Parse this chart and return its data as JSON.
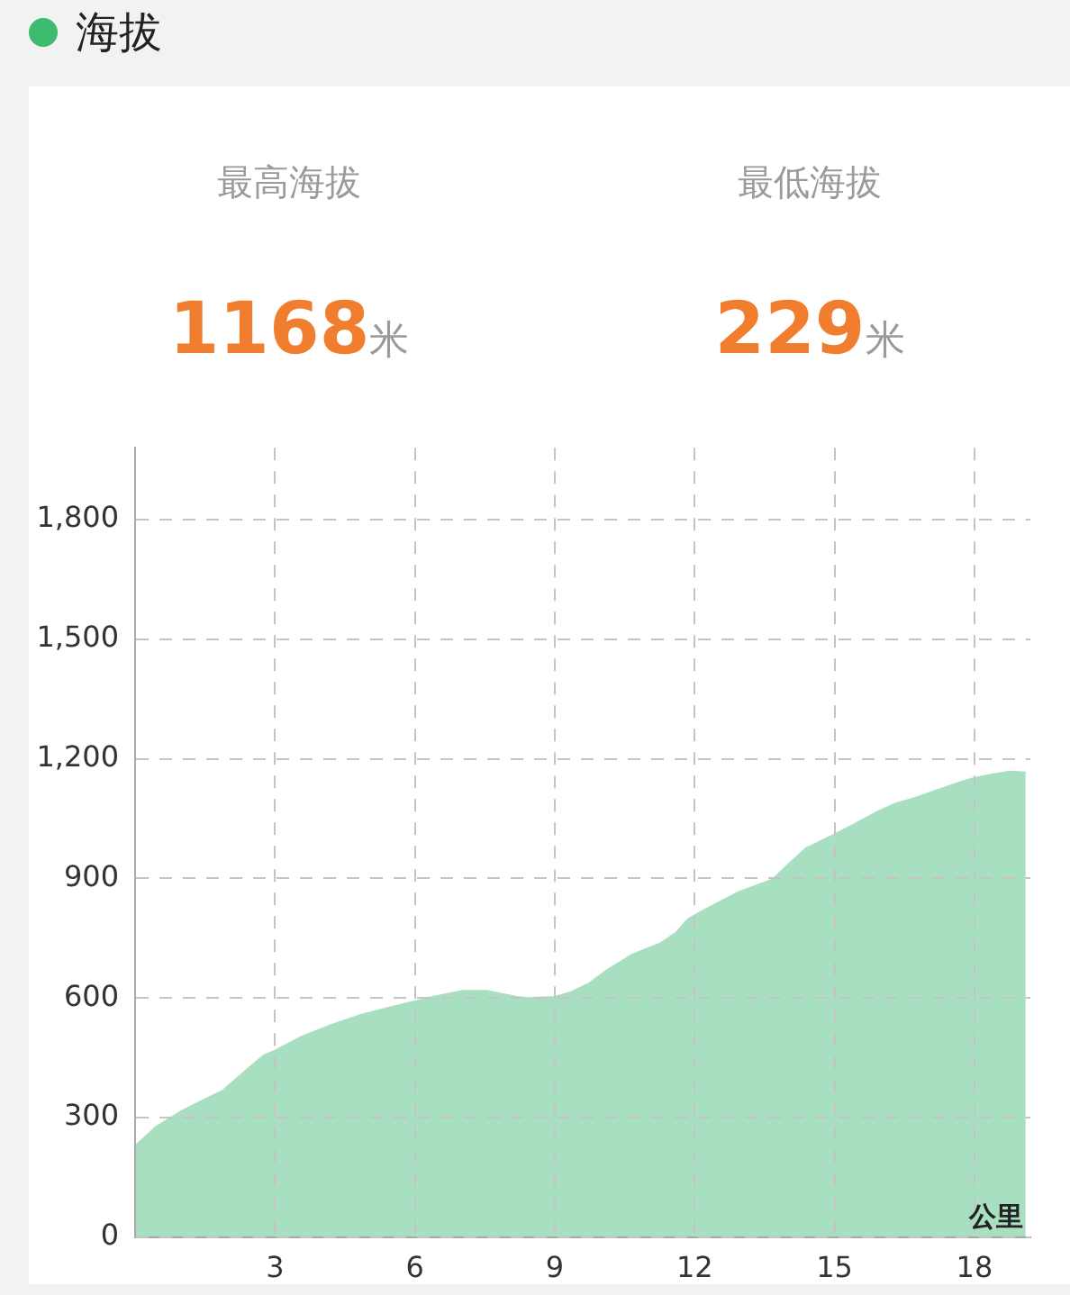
{
  "chart_data": {
    "type": "area",
    "title": "海拔",
    "xlabel": "公里",
    "annotations": [
      "最高海拔",
      "1168",
      "米",
      "最低海拔",
      "229",
      "米"
    ],
    "x": [
      0,
      0.45,
      0.97,
      1.48,
      1.87,
      2.39,
      2.77,
      3.0,
      3.55,
      4.19,
      4.84,
      5.48,
      6.0,
      6.38,
      7.03,
      7.54,
      7.8,
      8.19,
      8.45,
      9.0,
      9.35,
      9.74,
      10.12,
      10.64,
      11.28,
      11.61,
      11.86,
      12.19,
      12.57,
      12.96,
      13.67,
      13.99,
      14.38,
      14.96,
      15.41,
      15.93,
      16.31,
      16.7,
      17.21,
      17.73,
      17.99,
      18.38,
      18.76,
      19.1
    ],
    "values": [
      229,
      277,
      315,
      345,
      367,
      420,
      457,
      468,
      502,
      532,
      558,
      577,
      592,
      603,
      618,
      618,
      612,
      603,
      600,
      603,
      615,
      637,
      670,
      708,
      738,
      765,
      798,
      820,
      843,
      867,
      897,
      933,
      975,
      1008,
      1035,
      1068,
      1088,
      1101,
      1122,
      1143,
      1152,
      1161,
      1168,
      1166
    ],
    "color": "#a9dfc1",
    "marker": "none",
    "xlim": [
      0,
      19.2
    ],
    "ylim": [
      0,
      1980
    ],
    "xticks": [
      3,
      6,
      9,
      12,
      15,
      18
    ],
    "yticks": [
      0,
      300,
      600,
      900,
      {
        "value": 1200,
        "label": "1,200"
      },
      {
        "value": 1500,
        "label": "1,500"
      },
      {
        "value": 1800,
        "label": "1,800"
      }
    ],
    "grid": true
  }
}
